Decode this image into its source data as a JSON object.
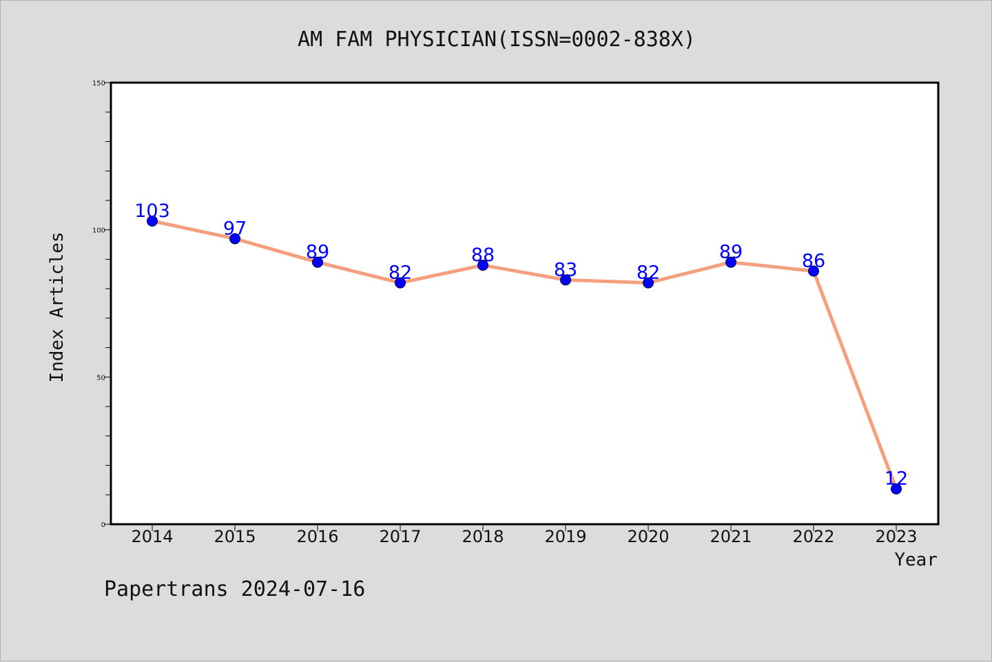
{
  "chart_data": {
    "type": "line",
    "title": "AM FAM PHYSICIAN(ISSN=0002-838X)",
    "xlabel": "Year",
    "ylabel": "Index Articles",
    "categories": [
      "2014",
      "2015",
      "2016",
      "2017",
      "2018",
      "2019",
      "2020",
      "2021",
      "2022",
      "2023"
    ],
    "series": [
      {
        "values": [
          103,
          97,
          89,
          82,
          88,
          83,
          82,
          89,
          86,
          12
        ]
      }
    ],
    "ylim": [
      0,
      150
    ],
    "yticks": [
      0,
      50,
      100,
      150
    ],
    "y_minor_step": 10,
    "grid": false,
    "show_data_labels": true,
    "colors": {
      "line": "#f4a07e",
      "marker": "#0000ff",
      "data_label": "#0000ff",
      "background": "#dcdcdc",
      "plot_background": "#ffffff"
    }
  },
  "footer": {
    "text": "Papertrans 2024-07-16"
  }
}
